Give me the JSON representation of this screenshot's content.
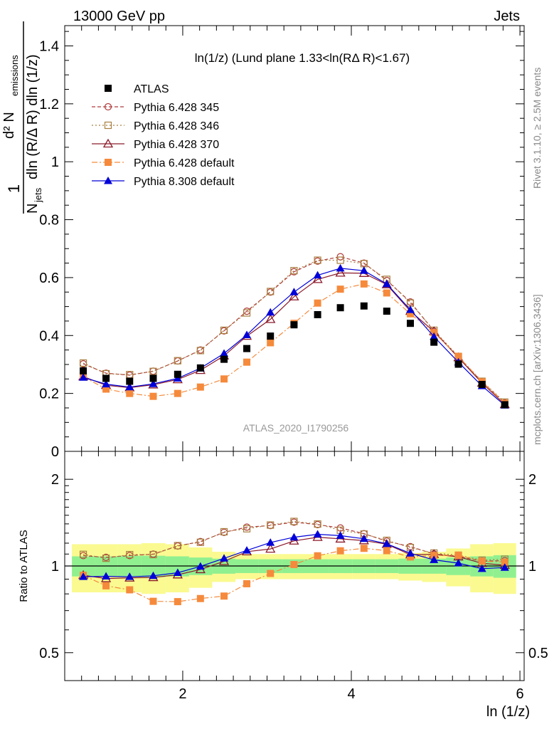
{
  "header": {
    "left": "13000 GeV pp",
    "right": "Jets"
  },
  "side_labels": {
    "rivet": "Rivet 3.1.10, ≥ 2.5M events",
    "mcplots": "mcplots.cern.ch [arXiv:1306.3436]"
  },
  "watermark": "ATLAS_2020_I1790256",
  "chart_data": {
    "type": "scatter",
    "title": "ln(1/z) (Lund plane 1.33<ln(RΔ R)<1.67)",
    "xlabel": "ln (1/z)",
    "ylabel": "1/N_jets d²N_emissions / dln(R/ΔR) dln(1/z)",
    "ylabel_parts": {
      "one": "1",
      "d2": "d² N",
      "emissions": "emissions",
      "N": "N",
      "jets": "jets",
      "den": "dln (R/Δ R) dln (1/z)"
    },
    "xlim": [
      0.6,
      6.05
    ],
    "ylim": [
      0,
      1.47
    ],
    "x_ticks": [
      "2",
      "4",
      "6"
    ],
    "y_ticks": [
      "0",
      "0.2",
      "0.4",
      "0.6",
      "0.8",
      "1",
      "1.2",
      "1.4"
    ],
    "legend_placement": "top-left",
    "x": [
      0.82,
      1.09,
      1.37,
      1.65,
      1.94,
      2.21,
      2.49,
      2.76,
      3.04,
      3.32,
      3.6,
      3.87,
      4.15,
      4.42,
      4.7,
      4.98,
      5.27,
      5.55,
      5.82
    ],
    "series": [
      {
        "name": "ATLAS",
        "color": "#000000",
        "marker": "square",
        "line": "none",
        "values": [
          0.278,
          0.252,
          0.242,
          0.252,
          0.266,
          0.288,
          0.318,
          0.355,
          0.398,
          0.437,
          0.472,
          0.496,
          0.502,
          0.484,
          0.442,
          0.377,
          0.301,
          0.231,
          0.161
        ]
      },
      {
        "name": "Pythia 6.428 345",
        "color": "#b03a3a",
        "marker": "circle-open",
        "line": "dashed",
        "values": [
          0.302,
          0.27,
          0.263,
          0.277,
          0.312,
          0.35,
          0.416,
          0.484,
          0.55,
          0.62,
          0.657,
          0.672,
          0.65,
          0.59,
          0.516,
          0.415,
          0.325,
          0.24,
          0.168
        ]
      },
      {
        "name": "Pythia 6.428 346",
        "color": "#a88040",
        "marker": "square-open",
        "line": "dotted",
        "values": [
          0.305,
          0.268,
          0.265,
          0.276,
          0.313,
          0.348,
          0.418,
          0.478,
          0.552,
          0.624,
          0.66,
          0.66,
          0.648,
          0.594,
          0.512,
          0.418,
          0.328,
          0.242,
          0.17
        ]
      },
      {
        "name": "Pythia 6.428 370",
        "color": "#8b1a2b",
        "marker": "triangle-open",
        "line": "solid",
        "values": [
          0.258,
          0.228,
          0.22,
          0.23,
          0.248,
          0.28,
          0.33,
          0.398,
          0.456,
          0.534,
          0.594,
          0.616,
          0.615,
          0.576,
          0.484,
          0.414,
          0.324,
          0.236,
          0.162
        ]
      },
      {
        "name": "Pythia 6.428 default",
        "color": "#f58a3c",
        "marker": "square",
        "line": "dashdot",
        "values": [
          0.258,
          0.215,
          0.2,
          0.19,
          0.2,
          0.222,
          0.25,
          0.308,
          0.375,
          0.442,
          0.512,
          0.56,
          0.578,
          0.547,
          0.475,
          0.41,
          0.328,
          0.24,
          0.166
        ]
      },
      {
        "name": "Pythia 8.308 default",
        "color": "#0000d8",
        "marker": "triangle",
        "line": "solid",
        "values": [
          0.255,
          0.232,
          0.222,
          0.233,
          0.252,
          0.287,
          0.338,
          0.402,
          0.48,
          0.55,
          0.608,
          0.632,
          0.624,
          0.578,
          0.489,
          0.396,
          0.308,
          0.226,
          0.159
        ]
      }
    ],
    "ratio": {
      "ylabel": "Ratio to ATLAS",
      "ylim": [
        0.4,
        2.5
      ],
      "log_scale": true,
      "y_ticks": [
        "0.5",
        "1",
        "2"
      ],
      "band_inner": [
        0.08,
        0.08,
        0.085,
        0.085,
        0.08,
        0.07,
        0.06,
        0.055,
        0.055,
        0.055,
        0.055,
        0.055,
        0.055,
        0.055,
        0.06,
        0.06,
        0.07,
        0.08,
        0.09
      ],
      "band_outer": [
        0.19,
        0.19,
        0.19,
        0.2,
        0.19,
        0.16,
        0.12,
        0.1,
        0.1,
        0.1,
        0.1,
        0.1,
        0.1,
        0.1,
        0.11,
        0.12,
        0.15,
        0.19,
        0.2
      ],
      "band_inner_color": "#90f090",
      "band_outer_color": "#fafa90"
    }
  }
}
